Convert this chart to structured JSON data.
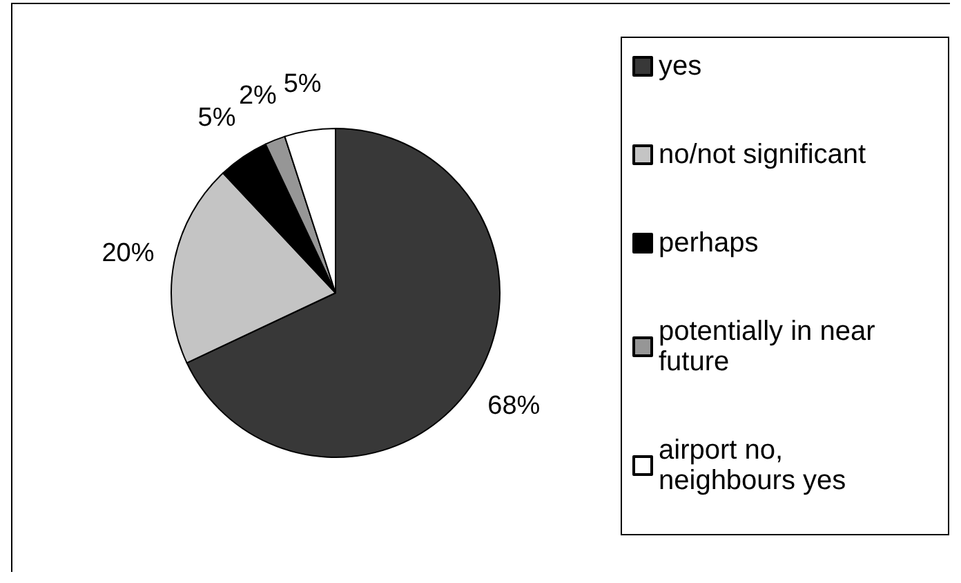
{
  "chart_data": {
    "type": "pie",
    "categories": [
      "yes",
      "no/not significant",
      "perhaps",
      "potentially in near future",
      "airport no, neighbours yes"
    ],
    "values": [
      68,
      20,
      5,
      2,
      5
    ],
    "value_labels": [
      "68%",
      "20%",
      "5%",
      "2%",
      "5%"
    ],
    "colors": [
      "#383838",
      "#c4c4c4",
      "#000000",
      "#969696",
      "#ffffff"
    ],
    "legend": "right"
  }
}
